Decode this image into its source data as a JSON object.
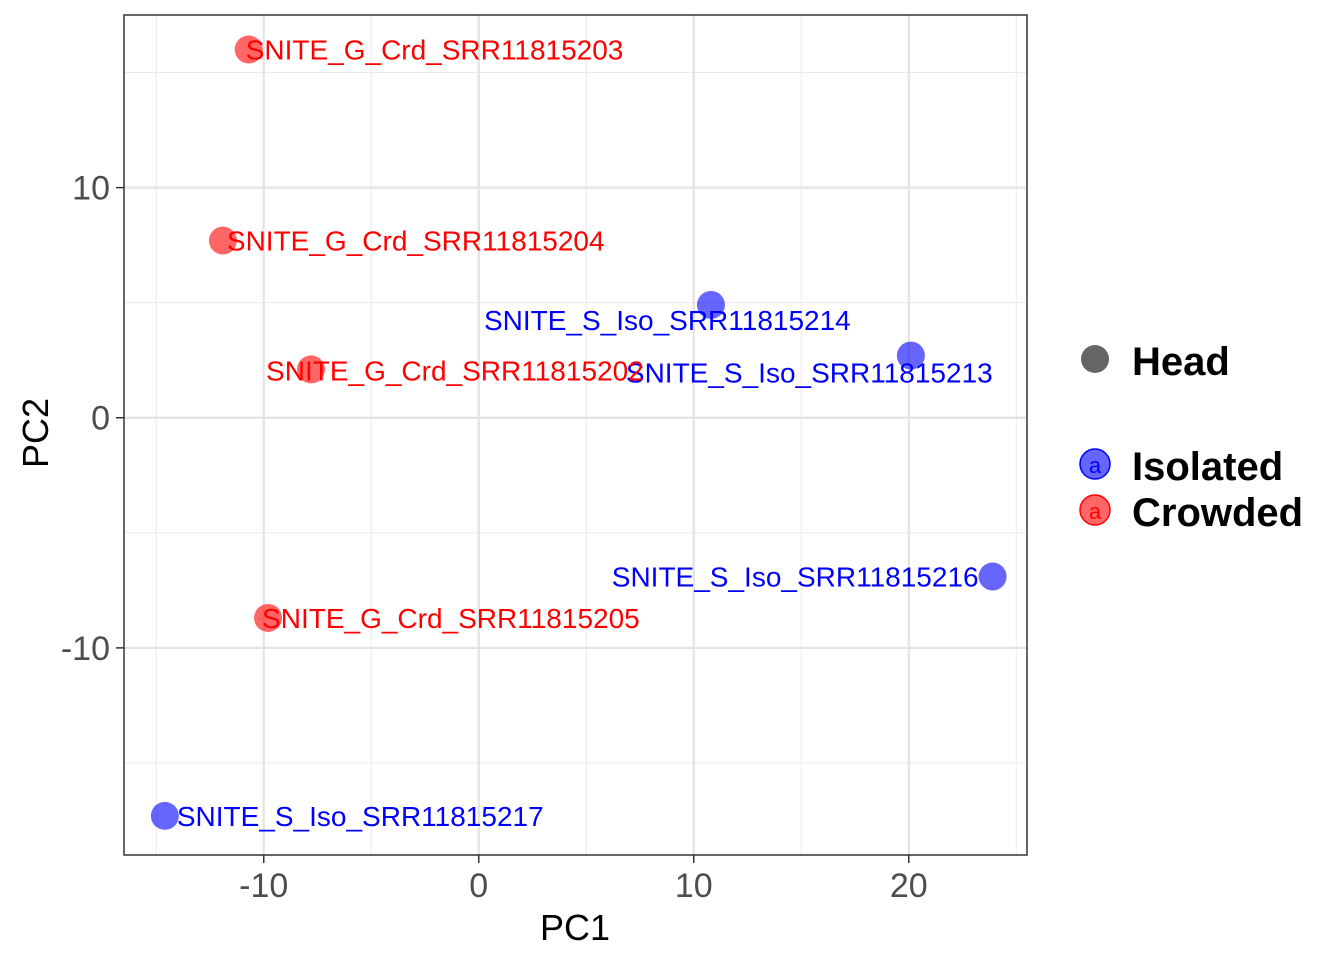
{
  "chart_data": {
    "type": "scatter",
    "title": "",
    "xlabel": "PC1",
    "ylabel": "PC2",
    "xlim": [
      -16.5,
      25.5
    ],
    "ylim": [
      -19.0,
      17.5
    ],
    "x_ticks": [
      -10,
      0,
      10,
      20
    ],
    "x_tick_labels": [
      "-10",
      "0",
      "10",
      "20"
    ],
    "y_ticks": [
      -10,
      0,
      10
    ],
    "y_tick_labels": [
      "-10",
      "0",
      "10"
    ],
    "grid": true,
    "legend_position": "right",
    "legend": {
      "shape_title": "Head",
      "groups": [
        {
          "name": "Isolated",
          "color": "#0000ff",
          "key_glyph": "a"
        },
        {
          "name": "Crowded",
          "color": "#ff0000",
          "key_glyph": "a"
        }
      ]
    },
    "series": [
      {
        "name": "Isolated",
        "color": "#0000ff",
        "points": [
          {
            "x": 10.8,
            "y": 4.9,
            "label": "SNITE_S_Iso_SRR11815214"
          },
          {
            "x": 20.1,
            "y": 2.7,
            "label": "SNITE_S_Iso_SRR11815213"
          },
          {
            "x": 23.9,
            "y": -6.9,
            "label": "SNITE_S_Iso_SRR11815216"
          },
          {
            "x": -14.6,
            "y": -17.3,
            "label": "SNITE_S_Iso_SRR11815217"
          }
        ]
      },
      {
        "name": "Crowded",
        "color": "#ff0000",
        "points": [
          {
            "x": -10.7,
            "y": 16.0,
            "label": "SNITE_G_Crd_SRR11815203"
          },
          {
            "x": -11.9,
            "y": 7.7,
            "label": "SNITE_G_Crd_SRR11815204"
          },
          {
            "x": -7.8,
            "y": 2.1,
            "label": "SNITE_G_Crd_SRR11815202"
          },
          {
            "x": -9.8,
            "y": -8.7,
            "label": "SNITE_G_Crd_SRR11815205"
          }
        ]
      }
    ]
  }
}
